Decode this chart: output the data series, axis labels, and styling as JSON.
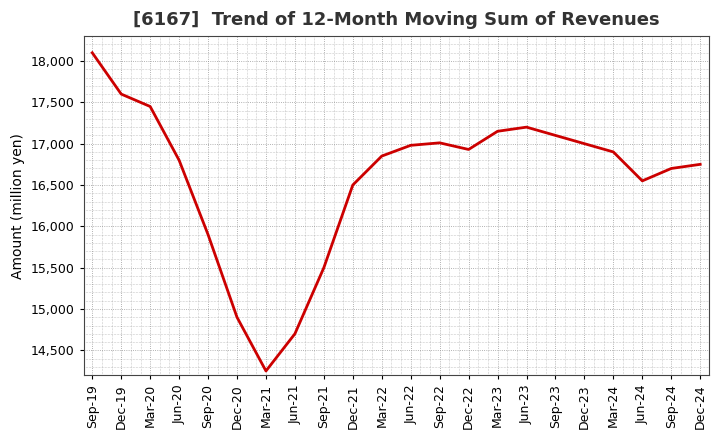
{
  "title": "[6167]  Trend of 12-Month Moving Sum of Revenues",
  "ylabel": "Amount (million yen)",
  "line_color": "#cc0000",
  "background_color": "#ffffff",
  "plot_bg_color": "#ffffff",
  "grid_color": "#999999",
  "x_labels": [
    "Sep-19",
    "Dec-19",
    "Mar-20",
    "Jun-20",
    "Sep-20",
    "Dec-20",
    "Mar-21",
    "Jun-21",
    "Sep-21",
    "Dec-21",
    "Mar-22",
    "Jun-22",
    "Sep-22",
    "Dec-22",
    "Mar-23",
    "Jun-23",
    "Sep-23",
    "Dec-23",
    "Mar-24",
    "Jun-24",
    "Sep-24",
    "Dec-24"
  ],
  "values": [
    18100,
    17600,
    17450,
    16800,
    15900,
    14900,
    14250,
    14700,
    15500,
    16500,
    16850,
    16980,
    17010,
    16930,
    17150,
    17200,
    17100,
    17000,
    16900,
    16550,
    16700,
    16750
  ],
  "ylim": [
    14200,
    18300
  ],
  "yticks": [
    14500,
    15000,
    15500,
    16000,
    16500,
    17000,
    17500,
    18000
  ],
  "title_fontsize": 13,
  "label_fontsize": 10,
  "tick_fontsize": 9
}
